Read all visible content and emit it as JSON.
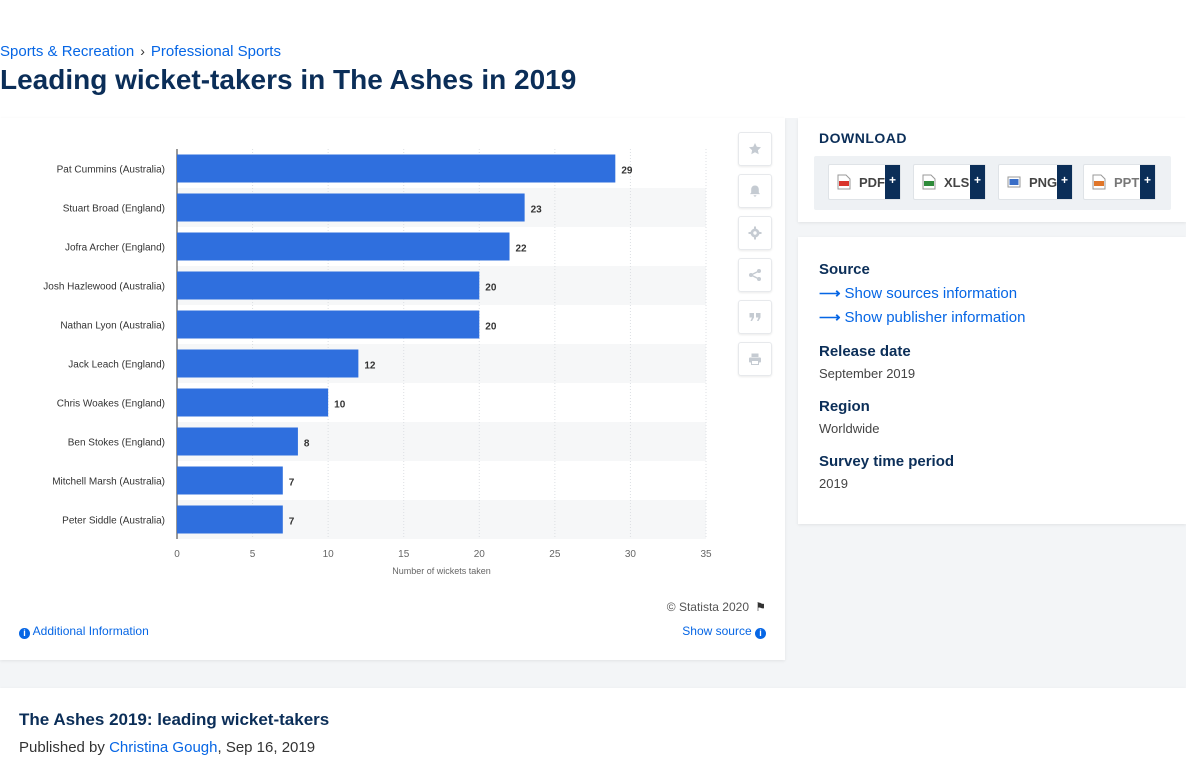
{
  "breadcrumb": {
    "parent": "Sports & Recreation",
    "child": "Professional Sports"
  },
  "page": {
    "title": "Leading wicket-takers in The Ashes in 2019"
  },
  "chart_data": {
    "type": "bar",
    "orientation": "horizontal",
    "categories": [
      "Pat Cummins (Australia)",
      "Stuart Broad (England)",
      "Jofra Archer (England)",
      "Josh Hazlewood (Australia)",
      "Nathan Lyon (Australia)",
      "Jack Leach (England)",
      "Chris Woakes (England)",
      "Ben Stokes (England)",
      "Mitchell Marsh (Australia)",
      "Peter Siddle (Australia)"
    ],
    "values": [
      29,
      23,
      22,
      20,
      20,
      12,
      10,
      8,
      7,
      7
    ],
    "xlabel": "Number of wickets taken",
    "ylabel": "",
    "xlim": [
      0,
      35
    ],
    "xticks": [
      0,
      5,
      10,
      15,
      20,
      25,
      30,
      35
    ],
    "bar_color": "#2f6fde",
    "grid": true,
    "data_labels": true
  },
  "chart_footer": {
    "copyright": "© Statista 2020",
    "additional_info": "Additional Information",
    "show_source": "Show source"
  },
  "tools": [
    "star-icon",
    "bell-icon",
    "gear-icon",
    "share-icon",
    "quote-icon",
    "print-icon"
  ],
  "download": {
    "title": "DOWNLOAD",
    "formats": [
      {
        "label": "PDF",
        "color": "#d9342b"
      },
      {
        "label": "XLS",
        "color": "#2e8b3a"
      },
      {
        "label": "PNG",
        "color": "#3a6ec7"
      },
      {
        "label": "PPT",
        "color": "#e0762a"
      }
    ],
    "plus": "+"
  },
  "meta": {
    "source_heading": "Source",
    "show_sources": "Show sources information",
    "show_publisher": "Show publisher information",
    "release_heading": "Release date",
    "release_value": "September 2019",
    "region_heading": "Region",
    "region_value": "Worldwide",
    "survey_heading": "Survey time period",
    "survey_value": "2019"
  },
  "article": {
    "title": "The Ashes 2019: leading wicket-takers",
    "published_by": "Published by",
    "author": "Christina Gough",
    "date": ", Sep 16, 2019"
  }
}
